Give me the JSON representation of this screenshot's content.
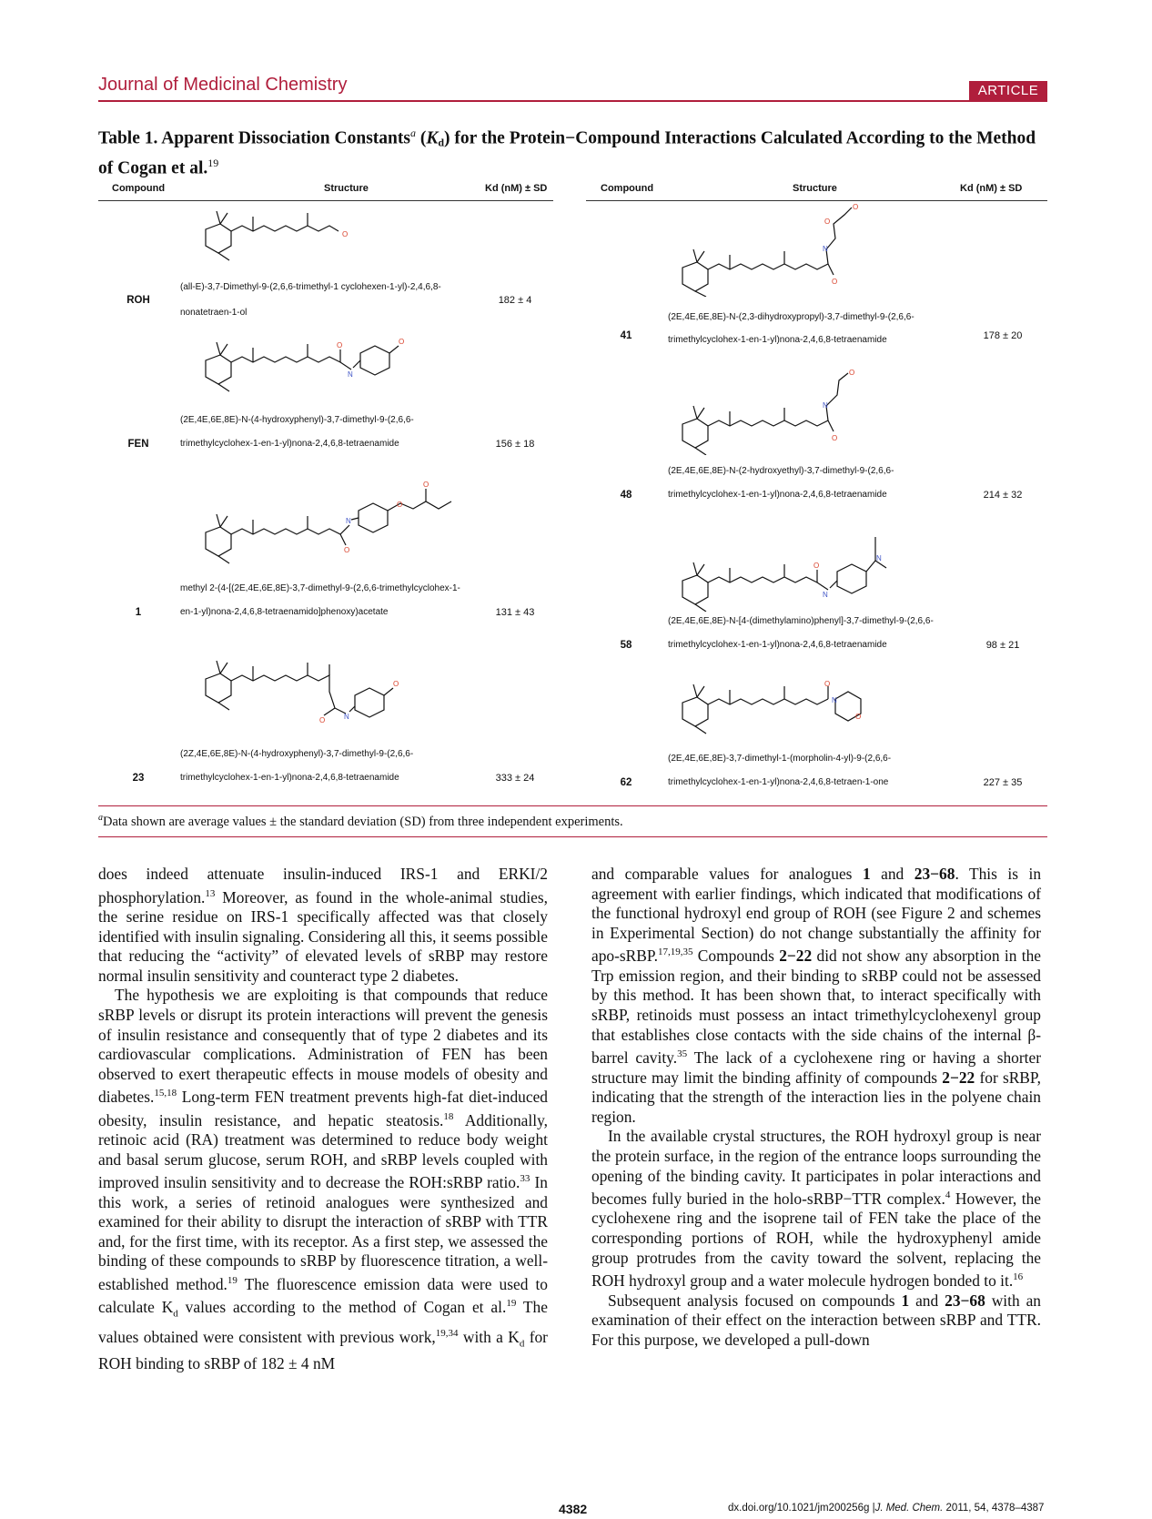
{
  "header": {
    "journal": "Journal of Medicinal Chemistry",
    "badge": "ARTICLE"
  },
  "caption": {
    "label": "Table 1.",
    "text_pre": "Apparent Dissociation Constants",
    "sup_a": "a",
    "kd": "K",
    "kd_sub": "d",
    "text_post": "for the Protein−Compound Interactions Calculated According to the Method of Cogan et al.",
    "ref": "19"
  },
  "table": {
    "headers": {
      "compound": "Compound",
      "structure": "Structure",
      "kd": "Kd (nM) ± SD"
    },
    "left": [
      {
        "id": "ROH",
        "name1": "(all-E)-3,7-Dimethyl-9-(2,6,6-trimethyl-1 cyclohexen-1-yl)-2,4,6,8-",
        "name2": "nonatetraen-1-ol",
        "kd": "182 ± 4"
      },
      {
        "id": "FEN",
        "name1": "(2E,4E,6E,8E)-N-(4-hydroxyphenyl)-3,7-dimethyl-9-(2,6,6-",
        "name2": "trimethylcyclohex-1-en-1-yl)nona-2,4,6,8-tetraenamide",
        "kd": "156 ± 18"
      },
      {
        "id": "1",
        "name1": "methyl  2-(4-[(2E,4E,6E,8E)-3,7-dimethyl-9-(2,6,6-trimethylcyclohex-1-",
        "name2": "en-1-yl)nona-2,4,6,8-tetraenamido]phenoxy)acetate",
        "kd": "131 ± 43"
      },
      {
        "id": "23",
        "name1": "(2Z,4E,6E,8E)-N-(4-hydroxyphenyl)-3,7-dimethyl-9-(2,6,6-",
        "name2": "trimethylcyclohex-1-en-1-yl)nona-2,4,6,8-tetraenamide",
        "kd": "333 ± 24"
      }
    ],
    "right": [
      {
        "id": "41",
        "name1": "(2E,4E,6E,8E)-N-(2,3-dihydroxypropyl)-3,7-dimethyl-9-(2,6,6-",
        "name2": "trimethylcyclohex-1-en-1-yl)nona-2,4,6,8-tetraenamide",
        "kd": "178 ± 20"
      },
      {
        "id": "48",
        "name1": "(2E,4E,6E,8E)-N-(2-hydroxyethyl)-3,7-dimethyl-9-(2,6,6-",
        "name2": "trimethylcyclohex-1-en-1-yl)nona-2,4,6,8-tetraenamide",
        "kd": "214 ± 32"
      },
      {
        "id": "58",
        "name1": "(2E,4E,6E,8E)-N-[4-(dimethylamino)phenyl]-3,7-dimethyl-9-(2,6,6-",
        "name2": "trimethylcyclohex-1-en-1-yl)nona-2,4,6,8-tetraenamide",
        "kd": "98 ± 21"
      },
      {
        "id": "62",
        "name1": "(2E,4E,6E,8E)-3,7-dimethyl-1-(morpholin-4-yl)-9-(2,6,6-",
        "name2": "trimethylcyclohex-1-en-1-yl)nona-2,4,6,8-tetraen-1-one",
        "kd": "227 ± 35"
      }
    ],
    "atom_labels": {
      "O": "O",
      "N": "N"
    }
  },
  "footnote": {
    "sup": "a",
    "text": "Data shown are average values ± the standard deviation (SD) from three independent experiments."
  },
  "body": {
    "left": [
      {
        "a": "does indeed attenuate insulin-induced IRS-1 and ERKI/2 phosphorylation.",
        "s1": "13",
        "b": " Moreover, as found in the whole-animal studies, the serine residue on IRS-1 specifically affected was that closely identified with insulin signaling. Considering all this, it seems possible that reducing the “activity” of elevated levels of sRBP may restore normal insulin sensitivity and counteract type 2 diabetes."
      },
      {
        "a": "The hypothesis we are exploiting is that compounds that reduce sRBP levels or disrupt its protein interactions will prevent the genesis of insulin resistance and consequently that of type 2 diabetes and its cardiovascular complications. Administration of FEN has been observed to exert therapeutic effects in mouse models of obesity and diabetes.",
        "s1": "15,18",
        "b": " Long-term FEN treatment prevents high-fat diet-induced obesity, insulin resistance, and hepatic steatosis.",
        "s2": "18",
        "c": " Additionally, retinoic acid (RA) treatment was determined to reduce body weight and basal serum glucose, serum ROH, and sRBP levels coupled with improved insulin sensitivity and to decrease the ROH:sRBP ratio.",
        "s3": "33",
        "d": " In this work, a series of retinoid analogues were synthesized and examined for their ability to disrupt the interaction of sRBP with TTR and, for the first time, with its receptor. As a first step, we assessed the binding of these compounds to sRBP by fluorescence titration, a well-established method.",
        "s4": "19",
        "e": " The fluorescence emission data were used to calculate K",
        "e_sub": "d",
        "f": " values according to the method of Cogan et al.",
        "s5": "19",
        "g": " The values obtained were consistent with previous work,",
        "s6": "19,34",
        "h": " with a K",
        "h_sub": "d",
        "i": " for ROH binding to sRBP of 182 ± 4 nM"
      }
    ],
    "right": [
      {
        "a": "and comparable values for analogues ",
        "b1": "1",
        "b": " and ",
        "b2": "23−68",
        "c": ". This is in agreement with earlier findings, which indicated that modifications of the functional hydroxyl end group of ROH (see Figure 2 and schemes in Experimental Section) do not change substantially the affinity for apo-sRBP.",
        "s1": "17,19,35",
        "d": " Compounds ",
        "b3": "2−22",
        "e": " did not show any absorption in the Trp emission region, and their binding to sRBP could not be assessed by this method. It has been shown that, to interact specifically with sRBP, retinoids must possess an intact trimethylcyclohexenyl group that establishes close contacts with the side chains of the internal β-barrel cavity.",
        "s2": "35",
        "f": " The lack of a cyclohexene ring or having a shorter structure may limit the binding affinity of compounds ",
        "b4": "2−22",
        "g": " for sRBP, indicating that the strength of the interaction lies in the polyene chain region."
      },
      {
        "a": "In the available crystal structures, the ROH hydroxyl group is near the protein surface, in the region of the entrance loops surrounding the opening of the binding cavity. It participates in polar interactions and becomes fully buried in the holo-sRBP−TTR complex.",
        "s1": "4",
        "b": " However, the cyclohexene ring and the isoprene tail of FEN take the place of the corresponding portions of ROH, while the hydroxyphenyl amide group protrudes from the cavity toward the solvent, replacing the ROH hydroxyl group and a water molecule hydrogen bonded to it.",
        "s2": "16"
      },
      {
        "a": "Subsequent analysis focused on compounds ",
        "b1": "1",
        "b": " and ",
        "b2": "23−68",
        "c": " with an examination of their effect on the interaction between sRBP and TTR. For this purpose, we developed a pull-down"
      }
    ]
  },
  "footer": {
    "page": "4382",
    "doi": "dx.doi.org/10.1021/jm200256g |",
    "journal_abbr": "J. Med. Chem.",
    "citation": " 2011, 54, 4378–4387"
  },
  "colors": {
    "accent": "#b01e3c",
    "oxygen": "#d9412b",
    "nitrogen": "#4055c7"
  }
}
